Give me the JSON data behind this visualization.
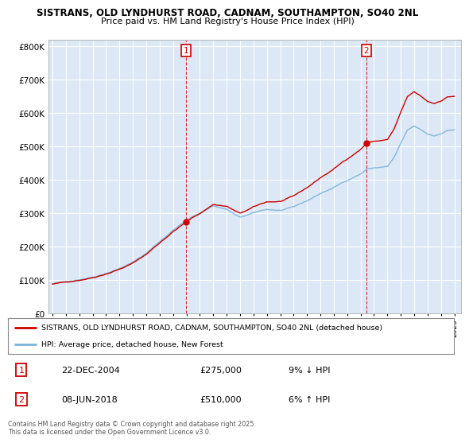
{
  "title1": "SISTRANS, OLD LYNDHURST ROAD, CADNAM, SOUTHAMPTON, SO40 2NL",
  "title2": "Price paid vs. HM Land Registry's House Price Index (HPI)",
  "background_color": "#ffffff",
  "plot_bg_color": "#dce8f5",
  "grid_color": "#ffffff",
  "hpi_color": "#7ab3d9",
  "price_color": "#cc0000",
  "vline_color": "#cc0000",
  "sale1_x": 2004.97,
  "sale2_x": 2018.44,
  "sale1": {
    "date": "22-DEC-2004",
    "price": "£275,000",
    "hpi_diff": "9% ↓ HPI"
  },
  "sale2": {
    "date": "08-JUN-2018",
    "price": "£510,000",
    "hpi_diff": "6% ↑ HPI"
  },
  "legend_label1": "SISTRANS, OLD LYNDHURST ROAD, CADNAM, SOUTHAMPTON, SO40 2NL (detached house)",
  "legend_label2": "HPI: Average price, detached house, New Forest",
  "footer": "Contains HM Land Registry data © Crown copyright and database right 2025.\nThis data is licensed under the Open Government Licence v3.0.",
  "ylim": [
    0,
    820000
  ],
  "yticks": [
    0,
    100000,
    200000,
    300000,
    400000,
    500000,
    600000,
    700000,
    800000
  ],
  "xlim": [
    1994.7,
    2025.5
  ],
  "xticks": [
    1995,
    1996,
    1997,
    1998,
    1999,
    2000,
    2001,
    2002,
    2003,
    2004,
    2005,
    2006,
    2007,
    2008,
    2009,
    2010,
    2011,
    2012,
    2013,
    2014,
    2015,
    2016,
    2017,
    2018,
    2019,
    2020,
    2021,
    2022,
    2023,
    2024,
    2025
  ]
}
